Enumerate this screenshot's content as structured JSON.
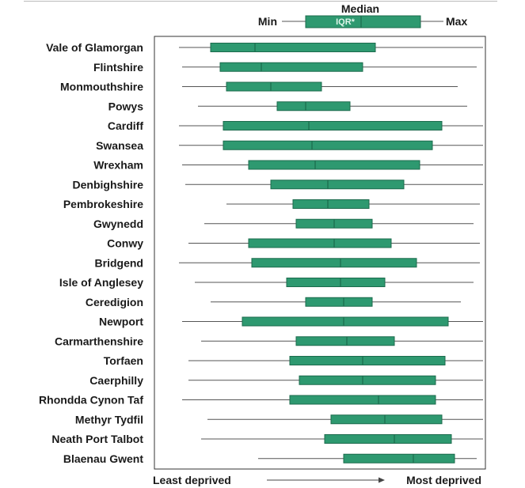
{
  "chart_data": {
    "type": "boxplot",
    "title": "",
    "xlabel": "",
    "ylabel": "",
    "xlim": [
      0,
      100
    ],
    "grid": false,
    "colors": {
      "box_fill": "#2e9970",
      "box_stroke": "#1c6b4d",
      "whisker": "#555555",
      "frame": "#333333"
    },
    "legend": {
      "median_label": "Median",
      "min_label": "Min",
      "max_label": "Max",
      "iqr_label": "IQR*"
    },
    "axis": {
      "left_text": "Least deprived",
      "right_text": "Most deprived"
    },
    "series": [
      {
        "name": "Vale of Glamorgan",
        "min": 4,
        "q1": 14,
        "median": 28,
        "q3": 66,
        "max": 100
      },
      {
        "name": "Flintshire",
        "min": 5,
        "q1": 17,
        "median": 30,
        "q3": 62,
        "max": 98
      },
      {
        "name": "Monmouthshire",
        "min": 5,
        "q1": 19,
        "median": 33,
        "q3": 49,
        "max": 92
      },
      {
        "name": "Powys",
        "min": 10,
        "q1": 35,
        "median": 44,
        "q3": 58,
        "max": 95
      },
      {
        "name": "Cardiff",
        "min": 4,
        "q1": 18,
        "median": 45,
        "q3": 87,
        "max": 100
      },
      {
        "name": "Swansea",
        "min": 4,
        "q1": 18,
        "median": 46,
        "q3": 84,
        "max": 100
      },
      {
        "name": "Wrexham",
        "min": 5,
        "q1": 26,
        "median": 47,
        "q3": 80,
        "max": 100
      },
      {
        "name": "Denbighshire",
        "min": 6,
        "q1": 33,
        "median": 51,
        "q3": 75,
        "max": 100
      },
      {
        "name": "Pembrokeshire",
        "min": 19,
        "q1": 40,
        "median": 51,
        "q3": 64,
        "max": 99
      },
      {
        "name": "Gwynedd",
        "min": 12,
        "q1": 41,
        "median": 53,
        "q3": 65,
        "max": 97
      },
      {
        "name": "Conwy",
        "min": 7,
        "q1": 26,
        "median": 53,
        "q3": 71,
        "max": 99
      },
      {
        "name": "Bridgend",
        "min": 4,
        "q1": 27,
        "median": 55,
        "q3": 79,
        "max": 99
      },
      {
        "name": "Isle of Anglesey",
        "min": 9,
        "q1": 38,
        "median": 55,
        "q3": 69,
        "max": 97
      },
      {
        "name": "Ceredigion",
        "min": 14,
        "q1": 44,
        "median": 56,
        "q3": 65,
        "max": 93
      },
      {
        "name": "Newport",
        "min": 5,
        "q1": 24,
        "median": 56,
        "q3": 89,
        "max": 100
      },
      {
        "name": "Carmarthenshire",
        "min": 11,
        "q1": 41,
        "median": 57,
        "q3": 72,
        "max": 100
      },
      {
        "name": "Torfaen",
        "min": 7,
        "q1": 39,
        "median": 62,
        "q3": 88,
        "max": 100
      },
      {
        "name": "Caerphilly",
        "min": 7,
        "q1": 42,
        "median": 62,
        "q3": 85,
        "max": 100
      },
      {
        "name": "Rhondda Cynon Taf",
        "min": 5,
        "q1": 39,
        "median": 67,
        "q3": 85,
        "max": 100
      },
      {
        "name": "Methyr Tydfil",
        "min": 13,
        "q1": 52,
        "median": 69,
        "q3": 87,
        "max": 100
      },
      {
        "name": "Neath Port Talbot",
        "min": 11,
        "q1": 50,
        "median": 72,
        "q3": 90,
        "max": 100
      },
      {
        "name": "Blaenau Gwent",
        "min": 29,
        "q1": 56,
        "median": 78,
        "q3": 91,
        "max": 98
      }
    ]
  }
}
